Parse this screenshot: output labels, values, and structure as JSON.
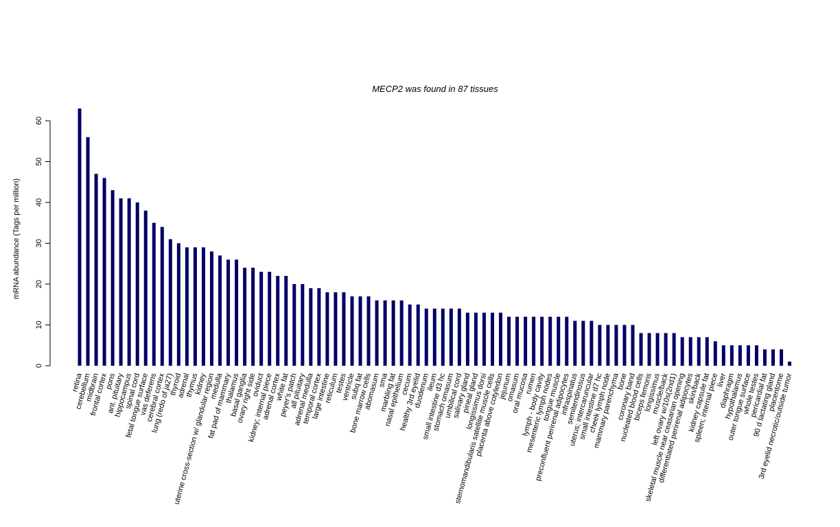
{
  "chart_data": {
    "type": "bar",
    "title": "MECP2  was found in  87  tissues",
    "y_label": "mRNA abundance (Tags per million)",
    "color": "#000066",
    "ylim": [
      0,
      60
    ],
    "yticks": [
      0,
      10,
      20,
      30,
      40,
      50,
      60
    ],
    "categories": [
      "retina",
      "cerebellum",
      "midbrain",
      "frontal cortex",
      "pons",
      "ant. pituitary",
      "hippocampus",
      "spinal cord",
      "fetal tongue surface",
      "vas deferens",
      "cerebral cortex",
      "lung (redo of ja27)",
      "thyroid",
      "adrenal",
      "thymus",
      "kidney",
      "uterine cross-section w/ glandular region",
      "medulla",
      "fat pad of mammary",
      "thalamus",
      "basal ganglia",
      "ovary right side",
      "oviduct",
      "kidney; internal piece",
      "adrenal cortex",
      "white fat",
      "peyer's patch",
      "all pituitary",
      "adrenal medulla",
      "temporal cortex",
      "large intestine",
      "reticulum",
      "testes",
      "ventricle",
      "subq fat",
      "bone marrow cells",
      "abomasum",
      "sma",
      "marbling fat",
      "nasal epithelium",
      "cecum",
      "healthy 3rd eyelid",
      "duodenum",
      "ileum",
      "small intestine d3 hc",
      "stomach omasum",
      "umbilical cord",
      "salivary gland",
      "pineal gland",
      "longissimus dorsi",
      "sternomandibularis satellite muscle cells",
      "placenta above cotyledon",
      "jejunum",
      "omasum",
      "oral mucosa",
      "rumen",
      "lymph - body cavity",
      "mesenteric lymph nodes",
      "tongue muscle",
      "preconfluent perirenal adipocytes",
      "infraspinatus",
      "semitendinosus",
      "uterus; intercaruncular",
      "small intestine d7 hc",
      "cheek lymph node",
      "mammary parenchyma",
      "bone",
      "coronary band",
      "nucleated blood cells",
      "biceps femoris",
      "longissimus",
      "muscle/back",
      "left ovary w/10s(2nd1)",
      "skeletal muscle near ceasarian opening",
      "differentiated perirenal adipocytes",
      "skin/back",
      "kidney capsule fat",
      "spleen; internal piece",
      "liver",
      "diaphragm",
      "hypothalamus",
      "outer tongue surface",
      "whole testes",
      "pericardial fat",
      "90 d lactating gland",
      "placentome",
      "3rd eyelid necrotic/outside tumor"
    ],
    "values": [
      63,
      56,
      47,
      46,
      43,
      41,
      41,
      40,
      38,
      35,
      34,
      31,
      30,
      29,
      29,
      29,
      28,
      27,
      26,
      26,
      24,
      24,
      23,
      23,
      22,
      22,
      20,
      20,
      19,
      19,
      18,
      18,
      18,
      17,
      17,
      17,
      16,
      16,
      16,
      16,
      15,
      15,
      14,
      14,
      14,
      14,
      14,
      13,
      13,
      13,
      13,
      13,
      12,
      12,
      12,
      12,
      12,
      12,
      12,
      12,
      11,
      11,
      11,
      10,
      10,
      10,
      10,
      10,
      8,
      8,
      8,
      8,
      8,
      7,
      7,
      7,
      7,
      6,
      5,
      5,
      5,
      5,
      5,
      4,
      4,
      4,
      1
    ]
  }
}
